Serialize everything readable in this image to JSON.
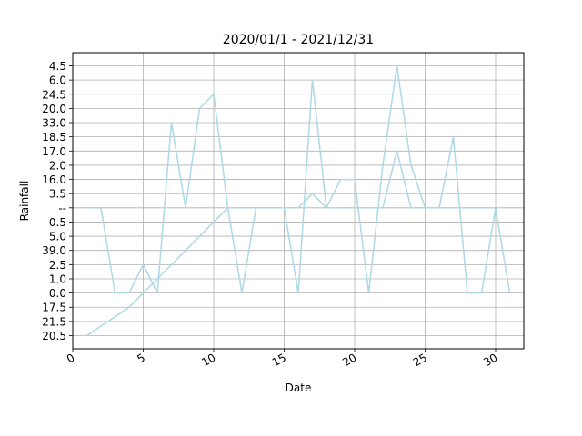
{
  "chart_data": {
    "type": "line",
    "title": "2020/01/1 - 2021/12/31",
    "xlabel": "Date",
    "ylabel": "Rainfall",
    "xlim": [
      0,
      32
    ],
    "x_ticks": [
      0,
      5,
      10,
      15,
      20,
      25,
      30
    ],
    "y_categories": [
      "20.5",
      "21.5",
      "17.5",
      "0.0",
      "1.0",
      "2.5",
      "39.0",
      "5.0",
      "0.5",
      "--",
      "3.5",
      "16.0",
      "2.0",
      "17.0",
      "18.5",
      "33.0",
      "20.0",
      "24.5",
      "6.0",
      "4.5"
    ],
    "grid": true,
    "series": [
      {
        "color": "#add8e6",
        "x": [
          1,
          2,
          3,
          4,
          5,
          6,
          7,
          8,
          9,
          10,
          11,
          12,
          13,
          14,
          15,
          16,
          17,
          18,
          19,
          20,
          21,
          22,
          23,
          24,
          25,
          26,
          27,
          28,
          29,
          30,
          31
        ],
        "y": [
          "--",
          "--",
          "0.0",
          "0.0",
          "2.5",
          "0.0",
          "33.0",
          "--",
          "20.0",
          "24.5",
          "--",
          "0.0",
          "--",
          "--",
          "--",
          "0.0",
          "6.0",
          "--",
          "16.0",
          "16.0",
          "0.0",
          "2.0",
          "4.5",
          "2.0",
          "--",
          "--",
          "18.5",
          "0.0",
          "0.0",
          "--",
          "0.0"
        ]
      },
      {
        "color": "#add8e6",
        "x": [
          1,
          4,
          5,
          11,
          16,
          17,
          18,
          22,
          23,
          24,
          30
        ],
        "y": [
          "20.5",
          "17.5",
          "0.0",
          "--",
          "--",
          "3.5",
          "--",
          "--",
          "17.0",
          "--",
          "--"
        ]
      }
    ]
  }
}
